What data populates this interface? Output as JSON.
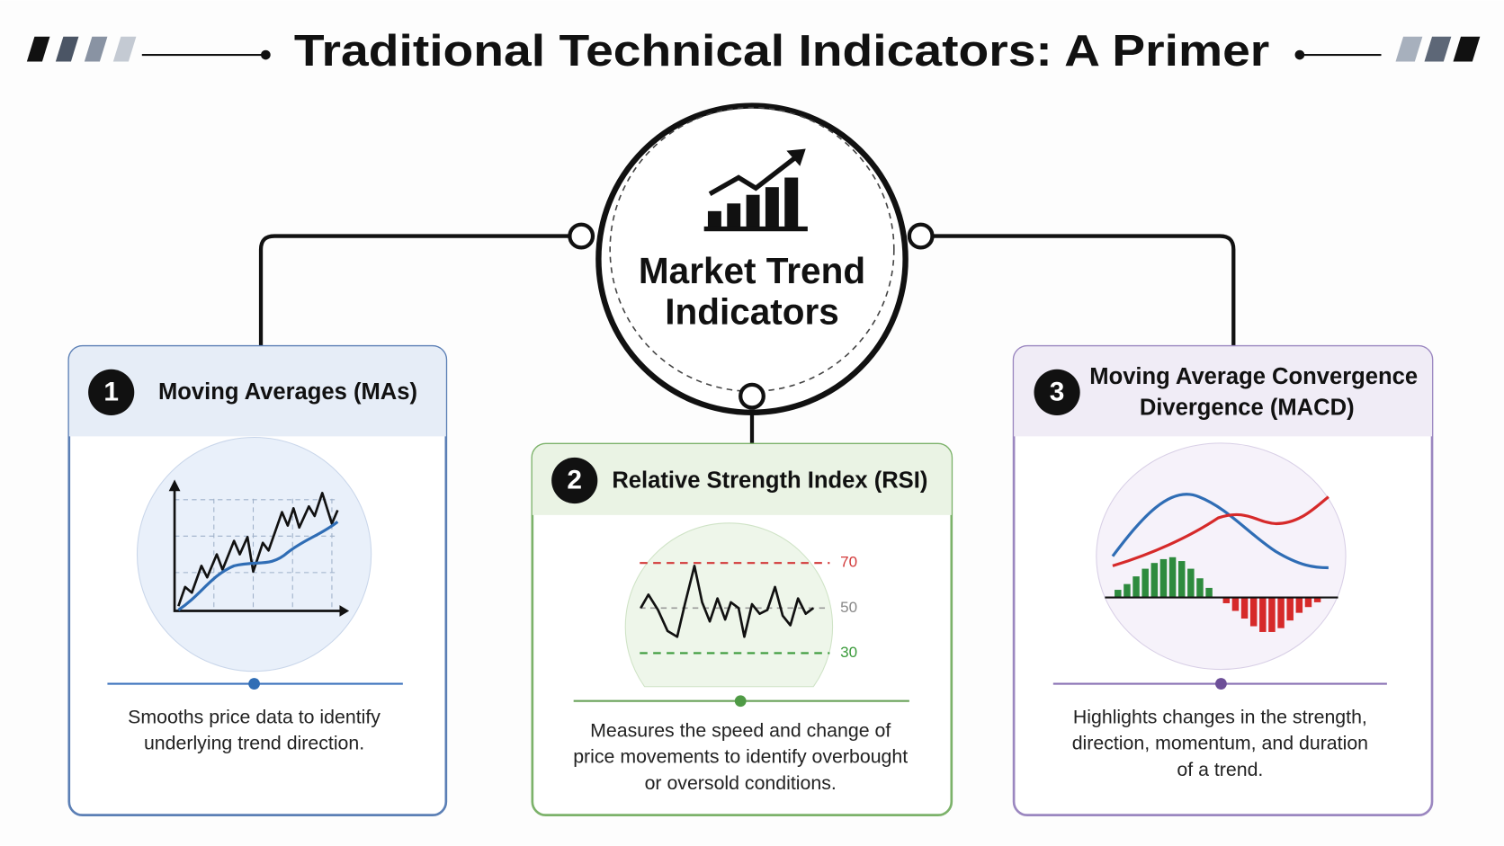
{
  "header": {
    "title": "Traditional Technical Indicators: A Primer"
  },
  "center": {
    "label_lines": [
      "Market Trend",
      "Indicators"
    ]
  },
  "cards": [
    {
      "number": "1",
      "title_lines": [
        "Moving Averages (MAs)"
      ],
      "description_lines": [
        "Smooths price data to identify",
        "underlying trend direction."
      ]
    },
    {
      "number": "2",
      "title_lines": [
        "Relative Strength Index (RSI)"
      ],
      "levels": [
        "70",
        "50",
        "30"
      ],
      "description_lines": [
        "Measures the speed and change of",
        "price movements to identify overbought",
        "or oversold conditions."
      ]
    },
    {
      "number": "3",
      "title_lines": [
        "Moving Average Convergence",
        "Divergence (MACD)"
      ],
      "description_lines": [
        "Highlights changes in the strength,",
        "direction, momentum, and duration",
        "of a trend."
      ]
    }
  ]
}
